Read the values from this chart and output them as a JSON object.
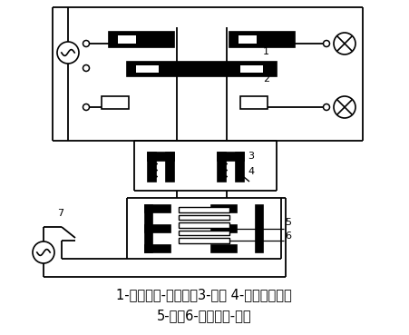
{
  "caption_line1": "1-常闭触头-常开触头3-衔铁 4-反作用力弹簧",
  "caption_line2": "5-铁芯6-电磁线圈-按钮",
  "background_color": "#ffffff",
  "caption_fontsize": 10.5,
  "fig_width": 4.51,
  "fig_height": 3.69,
  "dpi": 100
}
